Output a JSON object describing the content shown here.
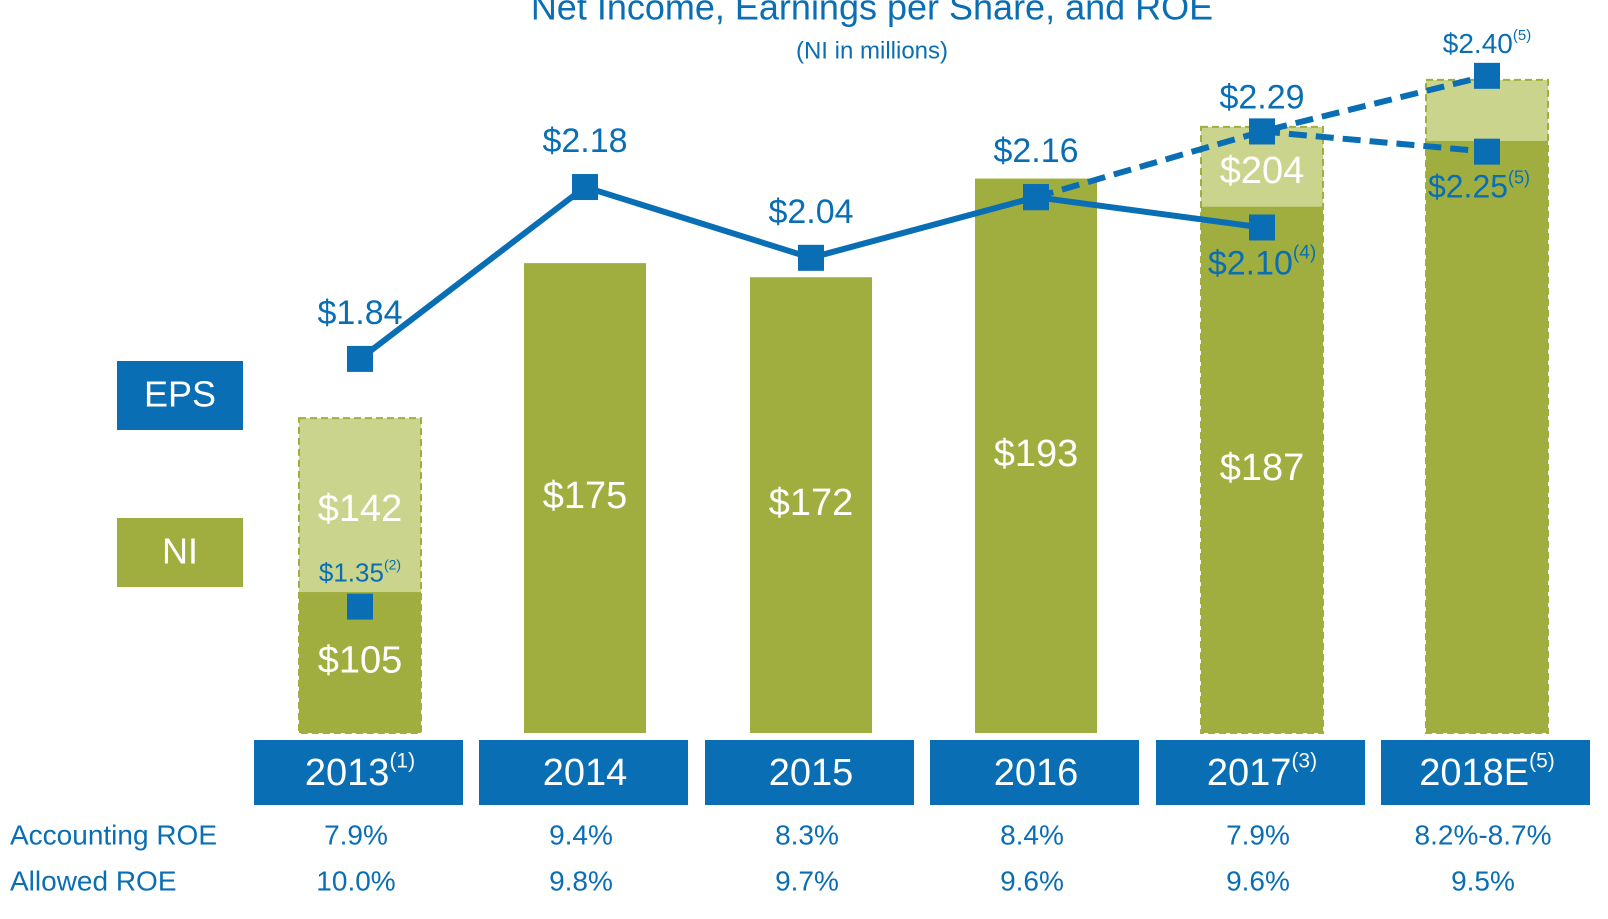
{
  "chart_data": {
    "type": "bar_line",
    "title": "Net Income, Earnings per Share, and ROE",
    "subtitle": "(NI in millions)",
    "categories": [
      "2013",
      "2014",
      "2015",
      "2016",
      "2017",
      "2018E"
    ],
    "category_notes": [
      "(1)",
      null,
      null,
      null,
      "(3)",
      "(5)"
    ],
    "ylim": [
      75,
      231
    ],
    "y2lim": [
      1.1,
      2.55
    ],
    "bars": [
      {
        "name": "NI",
        "color": "#9fae3f",
        "values": [
          105,
          175,
          172,
          193,
          187,
          201
        ],
        "value_labels": [
          "$105",
          "$175",
          "$172",
          "$193",
          "$187",
          null
        ]
      },
      {
        "color": "#cbd48c",
        "border": "#9fae3f",
        "values": [
          142,
          null,
          null,
          null,
          204,
          214
        ],
        "value_labels": [
          "$142",
          null,
          null,
          null,
          "$204",
          null
        ]
      }
    ],
    "series": [
      {
        "name": "EPS",
        "color": "#0a6eb4",
        "axis": "y2",
        "dashed": false,
        "values": [
          1.84,
          2.18,
          2.04,
          2.16,
          2.1,
          null
        ],
        "value_labels": [
          "$1.84",
          "$2.18",
          "$2.04",
          "$2.16",
          "$2.10",
          null
        ],
        "notes": [
          null,
          null,
          null,
          null,
          "(4)",
          null
        ]
      },
      {
        "color": "#0a6eb4",
        "axis": "y2",
        "dashed": true,
        "values": [
          null,
          null,
          null,
          2.16,
          2.29,
          2.4
        ],
        "value_labels": [
          null,
          null,
          null,
          null,
          "$2.29",
          "$2.40"
        ],
        "notes": [
          null,
          null,
          null,
          null,
          null,
          "(5)"
        ]
      },
      {
        "color": "#0a6eb4",
        "axis": "y2",
        "dashed": true,
        "values": [
          null,
          null,
          null,
          null,
          2.29,
          2.25
        ],
        "value_labels": [
          null,
          null,
          null,
          null,
          null,
          "$2.25"
        ],
        "notes": [
          null,
          null,
          null,
          null,
          null,
          "(5)"
        ]
      },
      {
        "color": "#0a6eb4",
        "axis": "y2",
        "line": false,
        "values": [
          1.35,
          null,
          null,
          null,
          null,
          null
        ],
        "value_labels": [
          "$1.35",
          null,
          null,
          null,
          null,
          null
        ],
        "notes": [
          "(2)",
          null,
          null,
          null,
          null,
          null
        ]
      }
    ],
    "table": {
      "rows": [
        {
          "label": "Accounting ROE",
          "values": [
            "7.9%",
            "9.4%",
            "8.3%",
            "8.4%",
            "7.9%",
            "8.2%-8.7%"
          ]
        },
        {
          "label": "Allowed ROE",
          "values": [
            "10.0%",
            "9.8%",
            "9.7%",
            "9.6%",
            "9.6%",
            "9.5%"
          ]
        }
      ]
    }
  }
}
